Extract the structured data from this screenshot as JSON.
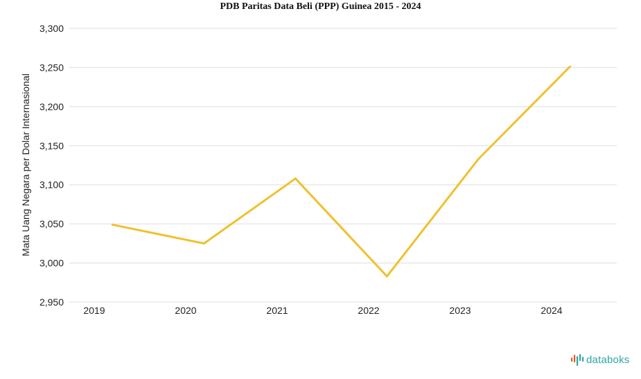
{
  "chart_data": {
    "type": "line",
    "title": "PDB Paritas Data Beli (PPP) Guinea 2015 - 2024",
    "xlabel": "",
    "ylabel": "Mata Uang Negara per Dolar Internasional",
    "categories": [
      "2019",
      "2020",
      "2021",
      "2022",
      "2023",
      "2024"
    ],
    "series": [
      {
        "x": [
          2019.2,
          2020.2,
          2021.2,
          2022.2,
          2023.2,
          2024.2
        ],
        "values": [
          3049,
          3025,
          3108,
          2983,
          3133,
          3251
        ],
        "color": "#f0c02d"
      }
    ],
    "ylim": [
      2950,
      3300
    ],
    "yticks": [
      2950,
      3000,
      3050,
      3100,
      3150,
      3200,
      3250,
      3300
    ],
    "ytick_labels": [
      "2,950",
      "3,000",
      "3,050",
      "3,100",
      "3,150",
      "3,200",
      "3,250",
      "3,300"
    ],
    "xticks": [
      2019,
      2020,
      2021,
      2022,
      2023,
      2024
    ],
    "grid": true,
    "gridline_color": "#dddddd",
    "legend": "none"
  },
  "brand": {
    "name": "databoks",
    "icon": "databoks-bars-icon",
    "color": "#2aa7a3",
    "accent_color": "#e8562a"
  }
}
